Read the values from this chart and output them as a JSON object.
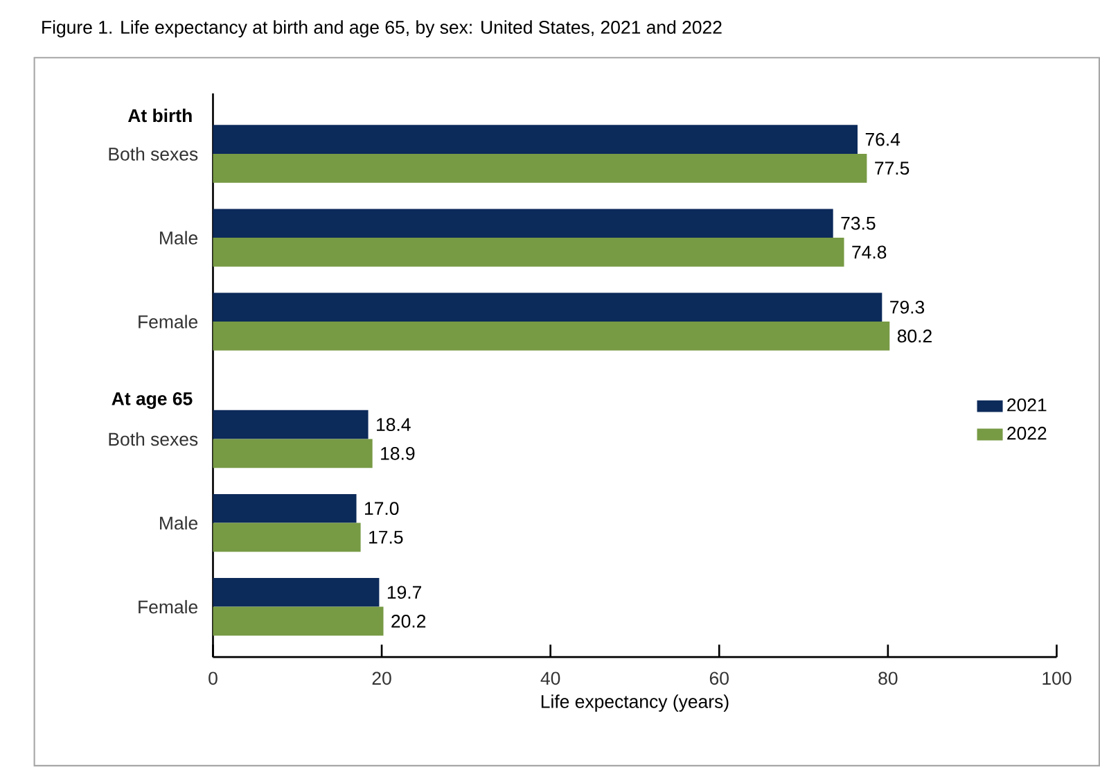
{
  "chart_data": {
    "type": "bar",
    "orientation": "horizontal",
    "title": "Figure 1. Life expectancy at birth and age 65, by sex: United States, 2021 and 2022",
    "categories": [
      "Both sexes",
      "Male",
      "Female",
      "Both sexes",
      "Male",
      "Female"
    ],
    "annotations": [
      "At birth",
      "At age 65"
    ],
    "series": [
      {
        "name": "2021",
        "color": "#0c2a5a",
        "values": [
          76.4,
          73.5,
          79.3,
          18.4,
          17.0,
          19.7
        ],
        "value_labels": [
          "76.4",
          "73.5",
          "79.3",
          "18.4",
          "17.0",
          "19.7"
        ]
      },
      {
        "name": "2022",
        "color": "#779a44",
        "values": [
          77.5,
          74.8,
          80.2,
          18.9,
          17.5,
          20.2
        ],
        "value_labels": [
          "77.5",
          "74.8",
          "80.2",
          "18.9",
          "17.5",
          "20.2"
        ]
      }
    ],
    "xlabel": "Life expectancy (years)",
    "xlim": [
      0,
      100
    ],
    "xticks": [
      0,
      20,
      40,
      60,
      80,
      100
    ],
    "legend": "right",
    "grid": false
  }
}
